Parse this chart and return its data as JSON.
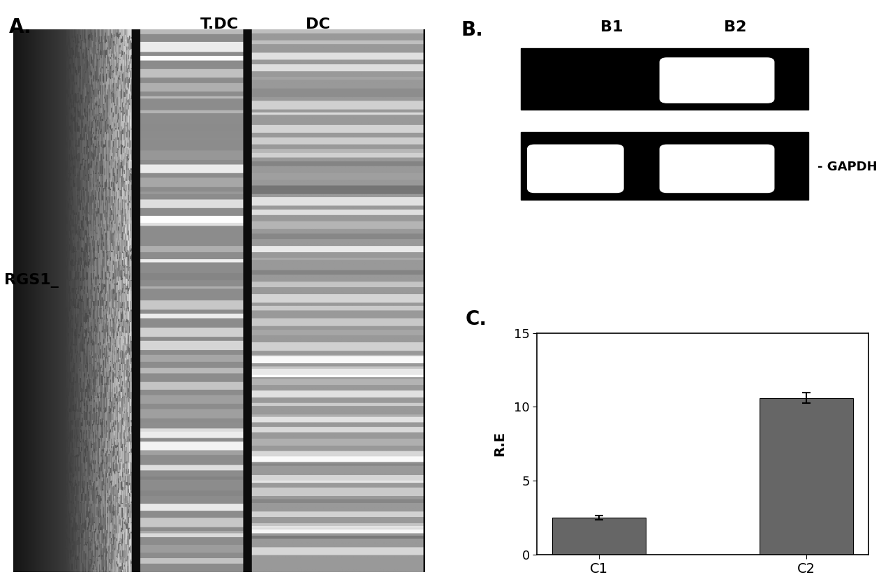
{
  "panel_A_label": "A.",
  "panel_B_label": "B.",
  "panel_C_label": "C.",
  "panel_A_col_labels": [
    "T.DC",
    "DC"
  ],
  "panel_A_rgs1_label": "RGS1_",
  "panel_B_col_labels": [
    "B1",
    "B2"
  ],
  "panel_B_gapdh_label": "- GAPDH",
  "panel_C_categories": [
    "C1",
    "C2"
  ],
  "panel_C_values": [
    2.5,
    10.6
  ],
  "panel_C_errors": [
    0.15,
    0.35
  ],
  "panel_C_ylabel": "R.E",
  "panel_C_yticks": [
    0,
    5,
    10,
    15
  ],
  "panel_C_ylim": [
    0,
    15
  ],
  "bar_color": "#666666",
  "background_color": "#ffffff"
}
